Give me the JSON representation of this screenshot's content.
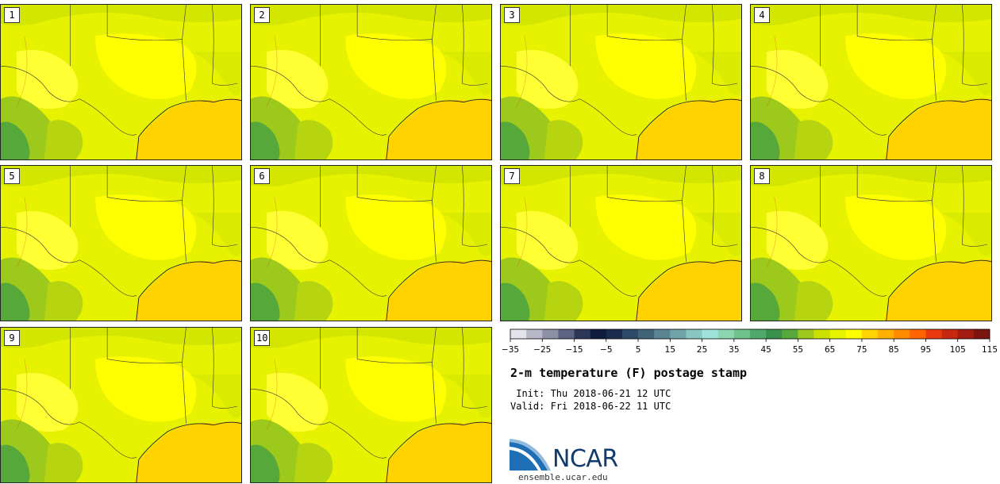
{
  "panels": [
    {
      "label": "1"
    },
    {
      "label": "2"
    },
    {
      "label": "3"
    },
    {
      "label": "4"
    },
    {
      "label": "5"
    },
    {
      "label": "6"
    },
    {
      "label": "7"
    },
    {
      "label": "8"
    },
    {
      "label": "9"
    },
    {
      "label": "10"
    }
  ],
  "colorbar": {
    "colors": [
      "#e2e3ec",
      "#b7b9c9",
      "#8d90a6",
      "#5d6382",
      "#2d3757",
      "#0f1c3b",
      "#1a2d4f",
      "#2f4a68",
      "#416479",
      "#5b8492",
      "#6fa4ab",
      "#87c6c1",
      "#9fe2d9",
      "#8ed6b0",
      "#6fc38a",
      "#4ea96a",
      "#3a914d",
      "#57a83a",
      "#9dc81c",
      "#c9e000",
      "#e6f400",
      "#ffff00",
      "#ffd400",
      "#ffb000",
      "#ff8c00",
      "#ff6400",
      "#e83a0e",
      "#c62810",
      "#a31c12",
      "#7c1410"
    ],
    "ticks": [
      "-35",
      "-25",
      "-15",
      "-5",
      "5",
      "15",
      "25",
      "35",
      "45",
      "55",
      "65",
      "75",
      "85",
      "95",
      "105",
      "115"
    ]
  },
  "title": "2-m temperature (F) postage stamp",
  "init_line": " Init: Thu 2018-06-21 12 UTC",
  "valid_line": "Valid: Fri 2018-06-22 11 UTC",
  "logo": {
    "text": "NCAR",
    "url": "ensemble.ucar.edu"
  }
}
